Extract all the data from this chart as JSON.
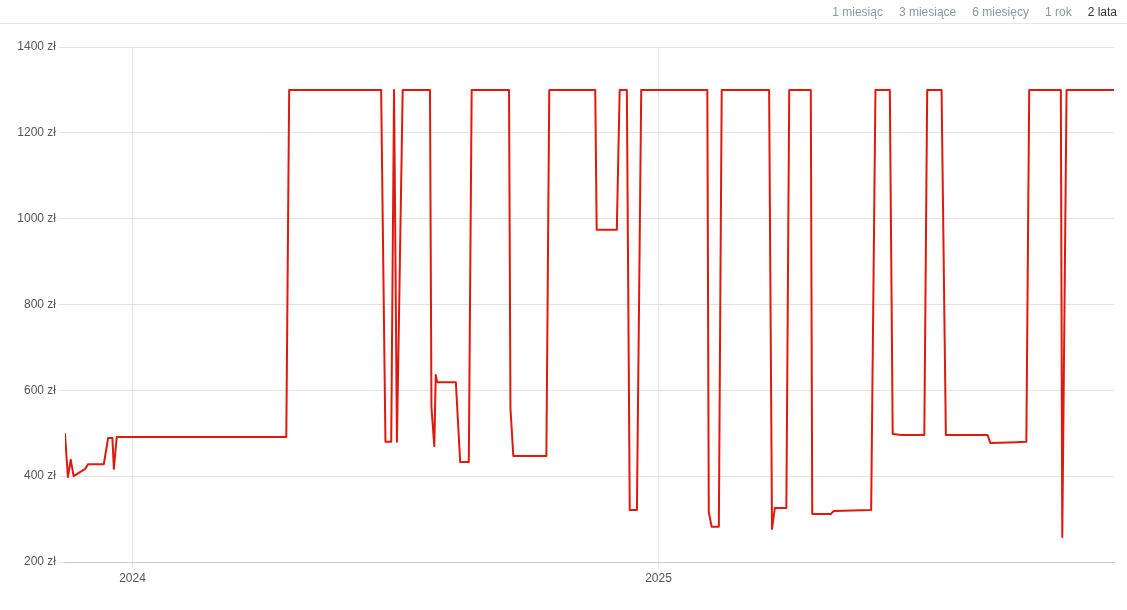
{
  "chart_data": {
    "type": "line",
    "annotations": [
      "1 miesiąc",
      "3 miesiące",
      "6 miesięcy",
      "1 rok",
      "2 lata"
    ],
    "x": [
      "2023-11-15",
      "2023-11-17",
      "2023-11-19",
      "2023-11-21",
      "2023-11-29",
      "2023-12-01",
      "2023-12-12",
      "2023-12-15",
      "2023-12-18",
      "2023-12-19",
      "2023-12-21",
      "2024-04-17",
      "2024-04-19",
      "2024-06-22",
      "2024-06-25",
      "2024-06-29",
      "2024-07-01",
      "2024-07-03",
      "2024-07-07",
      "2024-07-26",
      "2024-07-27",
      "2024-07-29",
      "2024-07-30",
      "2024-07-31",
      "2024-08-13",
      "2024-08-16",
      "2024-08-22",
      "2024-08-24",
      "2024-09-19",
      "2024-09-20",
      "2024-09-22",
      "2024-10-15",
      "2024-10-17",
      "2024-11-18",
      "2024-11-19",
      "2024-12-03",
      "2024-12-05",
      "2024-12-10",
      "2024-12-12",
      "2024-12-17",
      "2024-12-20",
      "2025-02-04",
      "2025-02-05",
      "2025-02-07",
      "2025-02-12",
      "2025-02-14",
      "2025-03-19",
      "2025-03-21",
      "2025-03-23",
      "2025-03-31",
      "2025-04-02",
      "2025-04-17",
      "2025-04-18",
      "2025-05-01",
      "2025-05-03",
      "2025-05-29",
      "2025-06-01",
      "2025-06-11",
      "2025-06-13",
      "2025-06-19",
      "2025-07-05",
      "2025-07-07",
      "2025-07-17",
      "2025-07-20",
      "2025-08-18",
      "2025-08-20",
      "2025-09-14",
      "2025-09-16",
      "2025-10-08",
      "2025-10-09",
      "2025-10-12",
      "2025-11-14"
    ],
    "series": [
      {
        "color": "#e0190f",
        "values": [
          498,
          398,
          438,
          400,
          417,
          428,
          428,
          489,
          489,
          417,
          491,
          491,
          1300,
          1300,
          480,
          480,
          1300,
          480,
          1300,
          1300,
          561,
          470,
          636,
          619,
          619,
          433,
          433,
          1300,
          1300,
          557,
          447,
          447,
          1300,
          1300,
          974,
          974,
          1300,
          1300,
          321,
          321,
          1300,
          1300,
          316,
          282,
          282,
          1300,
          1300,
          277,
          326,
          326,
          1300,
          1300,
          312,
          312,
          319,
          321,
          1300,
          1300,
          498,
          496,
          496,
          1300,
          1300,
          496,
          496,
          477,
          480,
          1300,
          1300,
          258,
          1300,
          1300
        ]
      }
    ],
    "xlim": [
      "2023-11-15",
      "2025-11-14"
    ],
    "xticks": [
      {
        "value": "2024-01-01",
        "label": "2024"
      },
      {
        "value": "2025-01-01",
        "label": "2025"
      }
    ],
    "ylim": [
      200,
      1400
    ],
    "yticks": [
      {
        "value": 200,
        "label": "200 zł"
      },
      {
        "value": 400,
        "label": "400 zł"
      },
      {
        "value": 600,
        "label": "600 zł"
      },
      {
        "value": 800,
        "label": "800 zł"
      },
      {
        "value": 1000,
        "label": "1000 zł"
      },
      {
        "value": 1200,
        "label": "1200 zł"
      },
      {
        "value": 1400,
        "label": "1400 zł"
      }
    ],
    "grid": true,
    "legend": false,
    "line_style": "solid"
  }
}
